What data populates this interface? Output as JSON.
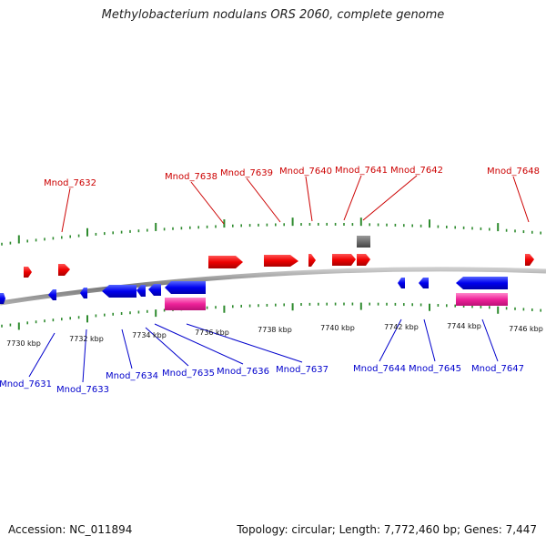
{
  "title": "Methylobacterium nodulans ORS 2060, complete genome",
  "footer": {
    "accession": "Accession: NC_011894",
    "summary": "Topology: circular; Length: 7,772,460 bp; Genes: 7,447"
  },
  "colors": {
    "forward_gene": "#ff0000",
    "reverse_gene": "#0000ff",
    "rna": "#ff2a9a",
    "other": "#666666",
    "tick": "#2e8b2e",
    "backbone": "#888888",
    "forward_label": "#cc0000",
    "reverse_label": "#0000cc"
  },
  "scale_labels": [
    "7730 kbp",
    "7732 kbp",
    "7734 kbp",
    "7736 kbp",
    "7738 kbp",
    "7740 kbp",
    "7742 kbp",
    "7744 kbp",
    "7746 kbp"
  ],
  "forward_labels": [
    "Mnod_7632",
    "Mnod_7638",
    "Mnod_7639",
    "Mnod_7640",
    "Mnod_7641",
    "Mnod_7642",
    "Mnod_7648"
  ],
  "reverse_labels": [
    "Mnod_7631",
    "Mnod_7633",
    "Mnod_7634",
    "Mnod_7635",
    "Mnod_7636",
    "Mnod_7637",
    "Mnod_7644",
    "Mnod_7645",
    "Mnod_7647"
  ]
}
